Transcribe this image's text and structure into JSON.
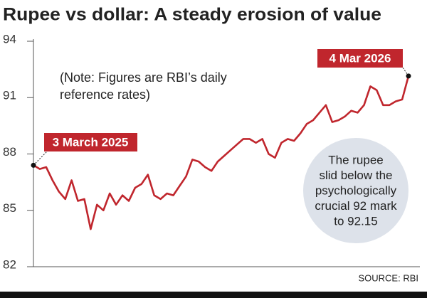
{
  "chart_data": {
    "type": "line",
    "title": "Rupee vs dollar: A steady erosion of value",
    "note": [
      "(Note: Figures are RBI’s daily",
      "reference rates)"
    ],
    "start_label": "3 March 2025",
    "end_label": "4 Mar 2026",
    "callout": [
      "The rupee",
      "slid below the",
      "psychologically",
      "crucial 92 mark",
      "to 92.15"
    ],
    "source": "SOURCE: RBI",
    "color": "#c0262d",
    "values": [
      87.4,
      87.2,
      87.3,
      86.6,
      86.0,
      85.6,
      86.6,
      85.5,
      85.6,
      84.0,
      85.3,
      85.0,
      85.9,
      85.3,
      85.8,
      85.5,
      86.2,
      86.4,
      86.9,
      85.8,
      85.6,
      85.9,
      85.8,
      86.3,
      86.8,
      87.7,
      87.6,
      87.3,
      87.1,
      87.6,
      87.9,
      88.2,
      88.5,
      88.8,
      88.8,
      88.6,
      88.8,
      88.0,
      87.8,
      88.6,
      88.8,
      88.7,
      89.1,
      89.6,
      89.8,
      90.2,
      90.6,
      89.7,
      89.8,
      90.0,
      90.3,
      90.2,
      90.6,
      91.6,
      91.4,
      90.6,
      90.6,
      90.8,
      90.9,
      92.15
    ],
    "ylim": [
      82,
      94
    ],
    "yticks": [
      82,
      85,
      88,
      91,
      94
    ]
  }
}
